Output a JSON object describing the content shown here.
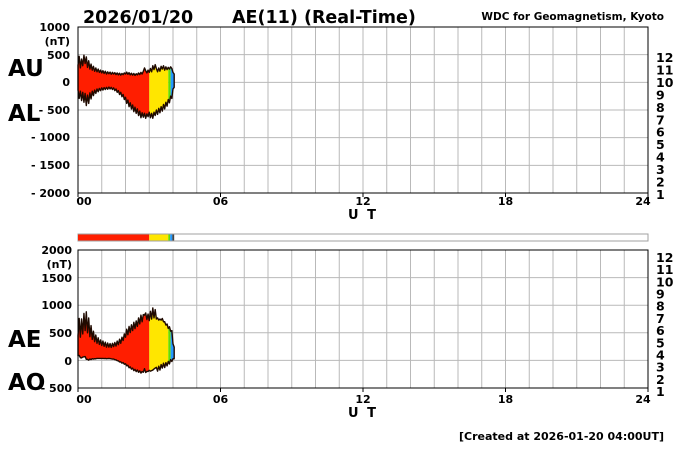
{
  "header": {
    "date": "2026/01/20",
    "title": "AE(11) (Real-Time)",
    "source": "WDC for Geomagnetism, Kyoto"
  },
  "footer": {
    "created": "[Created at 2026-01-20 04:00UT]"
  },
  "axis": {
    "x_ticks": [
      "00",
      "06",
      "12",
      "18",
      "24"
    ],
    "x_label": "U T"
  },
  "top_plot": {
    "left_labels": [
      "AU",
      "AL"
    ],
    "y_ticks": [
      "1000",
      "(nT)",
      "500",
      "0",
      "- 500",
      "- 1000",
      "- 1500",
      "- 2000"
    ],
    "y_max": 1000,
    "y_min": -2000
  },
  "bottom_plot": {
    "left_labels": [
      "AE",
      "AO"
    ],
    "y_ticks": [
      "2000",
      "(nT)",
      "1500",
      "1000",
      "500",
      "0",
      "- 500"
    ],
    "y_max": 2000,
    "y_min": -500
  },
  "legend_stations": [
    {
      "n": "12",
      "color": "#ee2266"
    },
    {
      "n": "11",
      "color": "#ff1e00"
    },
    {
      "n": "10",
      "color": "#ff9900"
    },
    {
      "n": "9",
      "color": "#ffe600"
    },
    {
      "n": "8",
      "color": "#66dd00"
    },
    {
      "n": "7",
      "color": "#00cccc"
    },
    {
      "n": "6",
      "color": "#2299ff"
    },
    {
      "n": "5",
      "color": "#5522ff"
    },
    {
      "n": "4",
      "color": "#ee00ee"
    },
    {
      "n": "3",
      "color": "#111111"
    },
    {
      "n": "2",
      "color": "#999999"
    },
    {
      "n": "1",
      "color": "#d8d8d8"
    }
  ],
  "chart_data": {
    "type": "area",
    "title": "AE(11) (Real-Time) 2026/01/20",
    "xlabel": "U T",
    "ylabel": "(nT)",
    "x_range_hours": [
      0,
      24
    ],
    "grid": true,
    "t_start": 0,
    "t_step_hours": 0.05,
    "top_panel": {
      "y_max": 1000,
      "y_min": -2000,
      "series_names": [
        "AU",
        "AL"
      ]
    },
    "bottom_panel": {
      "y_max": 2000,
      "y_min": -500,
      "series_names": [
        "AE",
        "AO"
      ]
    },
    "series": [
      {
        "name": "AU",
        "values": [
          310,
          470,
          260,
          420,
          300,
          490,
          340,
          460,
          270,
          390,
          240,
          330,
          220,
          290,
          200,
          260,
          190,
          240,
          180,
          220,
          170,
          210,
          160,
          200,
          150,
          190,
          155,
          185,
          145,
          180,
          150,
          175,
          140,
          170,
          135,
          165,
          130,
          160,
          140,
          170,
          150,
          185,
          145,
          175,
          135,
          165,
          130,
          160,
          125,
          155,
          135,
          170,
          140,
          180,
          150,
          200,
          260,
          210,
          170,
          220,
          180,
          250,
          190,
          300,
          230,
          320,
          250,
          190,
          260,
          200,
          290,
          240,
          300,
          220,
          280,
          230,
          270,
          240,
          280,
          250,
          180,
          150
        ]
      },
      {
        "name": "AL",
        "values": [
          -140,
          -290,
          -160,
          -330,
          -180,
          -360,
          -200,
          -420,
          -230,
          -380,
          -190,
          -300,
          -160,
          -240,
          -140,
          -200,
          -120,
          -170,
          -110,
          -150,
          -100,
          -140,
          -95,
          -130,
          -90,
          -125,
          -85,
          -120,
          -90,
          -130,
          -100,
          -150,
          -120,
          -180,
          -150,
          -220,
          -180,
          -260,
          -220,
          -310,
          -270,
          -380,
          -320,
          -440,
          -370,
          -480,
          -410,
          -530,
          -450,
          -560,
          -480,
          -600,
          -520,
          -640,
          -550,
          -630,
          -560,
          -650,
          -570,
          -620,
          -540,
          -640,
          -560,
          -650,
          -540,
          -600,
          -500,
          -580,
          -470,
          -550,
          -440,
          -520,
          -400,
          -480,
          -360,
          -430,
          -310,
          -370,
          -250,
          -290,
          -120,
          -90
        ]
      },
      {
        "name": "AE",
        "values": [
          450,
          760,
          420,
          750,
          480,
          850,
          540,
          880,
          500,
          770,
          430,
          630,
          380,
          530,
          340,
          460,
          310,
          410,
          290,
          370,
          270,
          350,
          255,
          330,
          240,
          315,
          240,
          305,
          235,
          310,
          250,
          325,
          260,
          350,
          285,
          385,
          310,
          420,
          360,
          480,
          420,
          565,
          465,
          615,
          505,
          645,
          540,
          690,
          575,
          715,
          615,
          770,
          660,
          820,
          700,
          830,
          820,
          860,
          740,
          840,
          720,
          890,
          750,
          950,
          770,
          920,
          750,
          770,
          730,
          750,
          730,
          760,
          700,
          700,
          640,
          660,
          580,
          610,
          530,
          540,
          300,
          240
        ]
      },
      {
        "name": "AO",
        "values": [
          85,
          90,
          50,
          45,
          60,
          65,
          70,
          20,
          20,
          5,
          25,
          15,
          30,
          25,
          30,
          30,
          35,
          35,
          35,
          35,
          35,
          35,
          33,
          35,
          30,
          33,
          35,
          33,
          28,
          25,
          25,
          13,
          10,
          -5,
          -8,
          -28,
          -25,
          -50,
          -40,
          -70,
          -60,
          -98,
          -88,
          -133,
          -118,
          -158,
          -140,
          -185,
          -163,
          -203,
          -173,
          -215,
          -190,
          -230,
          -200,
          -215,
          -150,
          -220,
          -200,
          -200,
          -180,
          -195,
          -185,
          -175,
          -155,
          -140,
          -125,
          -195,
          -105,
          -175,
          -75,
          -140,
          -50,
          -130,
          -40,
          -100,
          -20,
          -65,
          15,
          -20,
          30,
          30
        ]
      }
    ],
    "station_segments": [
      {
        "t0": 0.0,
        "t1": 3.0,
        "stations": 11,
        "color": "#ff1e00"
      },
      {
        "t0": 3.0,
        "t1": 3.8,
        "stations": 9,
        "color": "#ffe600"
      },
      {
        "t0": 3.8,
        "t1": 3.9,
        "stations": 8,
        "color": "#66dd00"
      },
      {
        "t0": 3.9,
        "t1": 4.05,
        "stations": 6,
        "color": "#2299ff"
      }
    ],
    "availability_bar_segments": [
      {
        "t0": 0.0,
        "t1": 3.0,
        "stations": 11,
        "color": "#ff1e00"
      },
      {
        "t0": 3.0,
        "t1": 3.8,
        "stations": 9,
        "color": "#ffe600"
      },
      {
        "t0": 3.8,
        "t1": 3.88,
        "stations": 8,
        "color": "#66dd00"
      },
      {
        "t0": 3.88,
        "t1": 3.97,
        "stations": 6,
        "color": "#2299ff"
      },
      {
        "t0": 3.97,
        "t1": 4.05,
        "stations": 3,
        "color": "#444444"
      }
    ]
  }
}
